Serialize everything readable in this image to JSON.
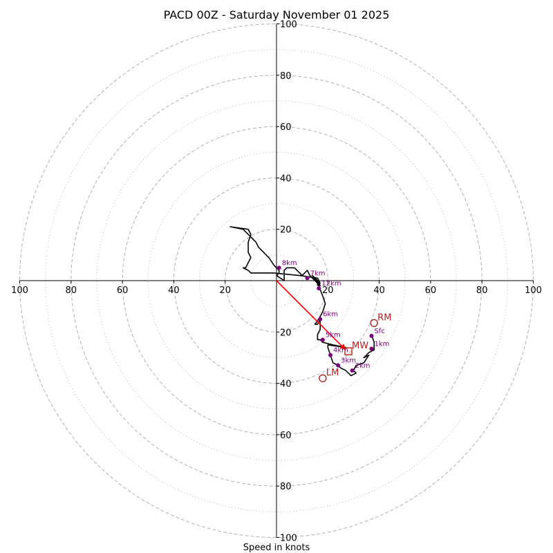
{
  "chart_data": {
    "type": "hodograph",
    "title": "PACD 00Z - Saturday November 01 2025",
    "xlabel": "Speed in knots",
    "units": "kt",
    "xlim": [
      -100,
      100
    ],
    "ylim": [
      -100,
      100
    ],
    "tick_values": [
      100,
      80,
      60,
      40,
      20
    ],
    "major_rings": [
      20,
      40,
      60,
      80,
      100
    ],
    "minor_rings": [
      10,
      30,
      50,
      70,
      90
    ],
    "profile": [
      [
        37,
        -21
      ],
      [
        38,
        -24
      ],
      [
        38,
        -27
      ],
      [
        36,
        -28
      ],
      [
        34,
        -30
      ],
      [
        36,
        -29
      ],
      [
        34,
        -32
      ],
      [
        31,
        -33
      ],
      [
        30,
        -35
      ],
      [
        31,
        -36
      ],
      [
        29,
        -37
      ],
      [
        27,
        -35
      ],
      [
        25,
        -34
      ],
      [
        24,
        -33
      ],
      [
        22,
        -32
      ],
      [
        21,
        -29
      ],
      [
        20,
        -26
      ],
      [
        20,
        -25
      ],
      [
        27,
        -26
      ],
      [
        22,
        -25
      ],
      [
        18,
        -24
      ],
      [
        17,
        -23
      ],
      [
        16,
        -23
      ],
      [
        16,
        -21
      ],
      [
        17,
        -19
      ],
      [
        17,
        -15
      ],
      [
        16,
        -17
      ],
      [
        15,
        -17
      ],
      [
        17,
        -14
      ],
      [
        18,
        -12
      ],
      [
        19,
        -9
      ],
      [
        18,
        -6
      ],
      [
        16,
        -1
      ],
      [
        14,
        2
      ],
      [
        16,
        0
      ],
      [
        17,
        -2
      ],
      [
        15,
        0
      ],
      [
        14,
        1
      ],
      [
        13,
        2
      ],
      [
        12,
        4
      ],
      [
        10,
        2
      ],
      [
        8,
        4
      ],
      [
        7,
        5
      ],
      [
        4,
        5
      ],
      [
        3,
        4
      ],
      [
        3,
        2
      ],
      [
        3,
        0
      ],
      [
        0,
        2
      ],
      [
        1,
        3
      ],
      [
        1,
        4
      ],
      [
        0,
        5
      ],
      [
        -1,
        6
      ],
      [
        -3,
        9
      ],
      [
        -4,
        10
      ],
      [
        -5,
        11
      ],
      [
        -7,
        13
      ],
      [
        -8,
        15
      ],
      [
        -11,
        18
      ],
      [
        -12,
        19
      ],
      [
        -13,
        20
      ],
      [
        -18,
        21
      ],
      [
        -11,
        20
      ],
      [
        -10,
        18
      ],
      [
        -11,
        15
      ],
      [
        -11,
        11
      ],
      [
        -10,
        9
      ],
      [
        -11,
        7
      ],
      [
        -12,
        5
      ],
      [
        -13,
        5
      ],
      [
        -11,
        4
      ],
      [
        -10,
        3
      ],
      [
        -1,
        3
      ],
      [
        9,
        2
      ],
      [
        16,
        1
      ],
      [
        17,
        -1
      ],
      [
        16,
        -1
      ],
      [
        16,
        0
      ],
      [
        16,
        -2
      ]
    ],
    "height_markers": [
      {
        "label": "Sfc",
        "u": 37,
        "v": -21.5
      },
      {
        "label": "1km",
        "u": 37,
        "v": -26.5
      },
      {
        "label": "2km",
        "u": 29.5,
        "v": -35
      },
      {
        "label": "3km",
        "u": 24,
        "v": -33
      },
      {
        "label": "4km",
        "u": 21,
        "v": -29
      },
      {
        "label": "5km",
        "u": 18,
        "v": -23
      },
      {
        "label": "6km",
        "u": 17,
        "v": -15
      },
      {
        "label": "7km",
        "u": 12,
        "v": 1
      },
      {
        "label": "8km",
        "u": 1,
        "v": 5
      },
      {
        "label": "12km",
        "u": 16.5,
        "v": -3
      }
    ],
    "motion_markers": [
      {
        "label": "RM",
        "u": 38,
        "v": -16.5,
        "shape": "circle"
      },
      {
        "label": "LM",
        "u": 18,
        "v": -38,
        "shape": "circle"
      },
      {
        "label": "MW",
        "u": 28,
        "v": -27.5,
        "shape": "square"
      }
    ],
    "shear_vector": {
      "from": [
        0,
        0
      ],
      "to": [
        27,
        -27
      ]
    },
    "colors": {
      "profile": "#000000",
      "height_marker": "#800080",
      "motion": "#b22222",
      "shear": "#ff0000",
      "ring": "#b0b0b0",
      "axis": "#000000"
    }
  }
}
